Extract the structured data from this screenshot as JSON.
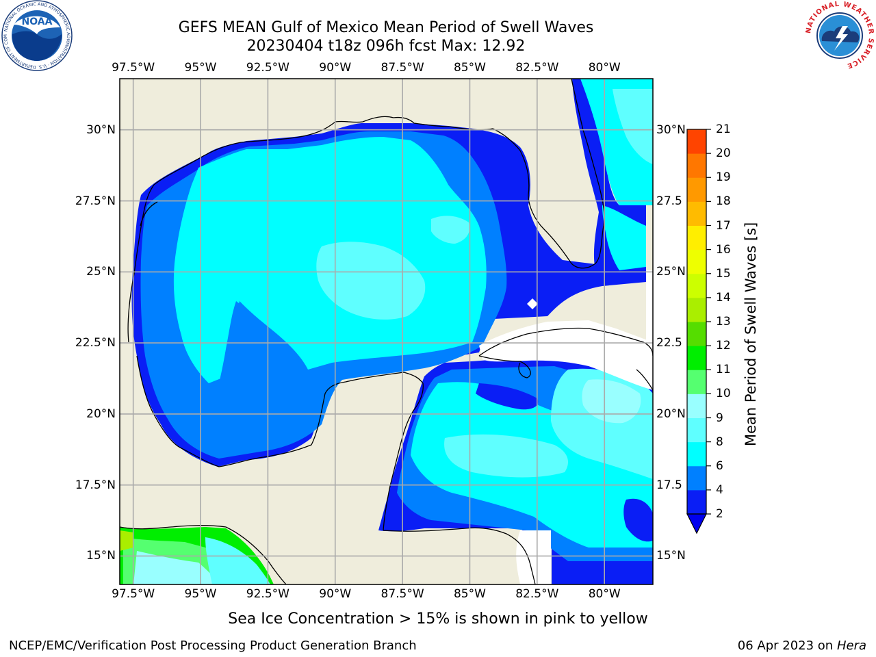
{
  "title": {
    "line1": "GEFS MEAN Gulf of Mexico Mean Period of Swell Waves",
    "line2": "20230404 t18z 096h fcst   Max: 12.92"
  },
  "map": {
    "lon_range": [
      -98,
      -78.2
    ],
    "lat_range": [
      14,
      31.8
    ],
    "lon_ticks": [
      {
        "value": -97.5,
        "label": "97.5°W"
      },
      {
        "value": -95,
        "label": "95°W"
      },
      {
        "value": -92.5,
        "label": "92.5°W"
      },
      {
        "value": -90,
        "label": "90°W"
      },
      {
        "value": -87.5,
        "label": "87.5°W"
      },
      {
        "value": -85,
        "label": "85°W"
      },
      {
        "value": -82.5,
        "label": "82.5°W"
      },
      {
        "value": -80,
        "label": "80°W"
      }
    ],
    "lat_ticks_left": [
      {
        "value": 30,
        "label": "30°N"
      },
      {
        "value": 27.5,
        "label": "27.5°N"
      },
      {
        "value": 25,
        "label": "25°N"
      },
      {
        "value": 22.5,
        "label": "22.5°N"
      },
      {
        "value": 20,
        "label": "20°N"
      },
      {
        "value": 17.5,
        "label": "17.5°N"
      },
      {
        "value": 15,
        "label": "15°N"
      }
    ],
    "lat_ticks_right": [
      {
        "value": 30,
        "label": "30°N"
      },
      {
        "value": 27.5,
        "label": "27.5"
      },
      {
        "value": 25,
        "label": "25°N"
      },
      {
        "value": 22.5,
        "label": "22.5"
      },
      {
        "value": 20,
        "label": "20°N"
      },
      {
        "value": 17.5,
        "label": "17.5"
      },
      {
        "value": 15,
        "label": "15°N"
      }
    ],
    "grid": true,
    "land_color": "#efeddc",
    "ocean_nodata_color": "#ffffff"
  },
  "colorbar": {
    "title": "Mean Period of Swell Waves [s]",
    "levels": [
      2,
      4,
      6,
      8,
      9,
      10,
      11,
      12,
      13,
      14,
      15,
      16,
      17,
      18,
      19,
      20,
      21
    ],
    "colors": [
      "#0a1ef5",
      "#0080ff",
      "#00ffff",
      "#5fffff",
      "#99ffff",
      "#55ff70",
      "#00ee00",
      "#55dd00",
      "#aaee00",
      "#ccff00",
      "#eeff00",
      "#ffee00",
      "#ffbb00",
      "#ff9900",
      "#ff7700",
      "#ff4400",
      "#ff0000"
    ],
    "under_color": "#0000ee",
    "extend": "min"
  },
  "caption": "Sea Ice Concentration > 15% is shown in pink to yellow",
  "footer": {
    "left": "NCEP/EMC/Verification Post Processing Product Generation Branch",
    "right_prefix": "06 Apr 2023 on ",
    "right_host": "Hera"
  },
  "logos": {
    "left": {
      "icon": "noaa-logo",
      "text": "NOAA",
      "ring": "NATIONAL OCEANIC AND ATMOSPHERIC ADMINISTRATION · U.S. DEPARTMENT OF COMMERCE"
    },
    "right": {
      "icon": "nws-logo",
      "ring": "NATIONAL WEATHER SERVICE"
    }
  }
}
